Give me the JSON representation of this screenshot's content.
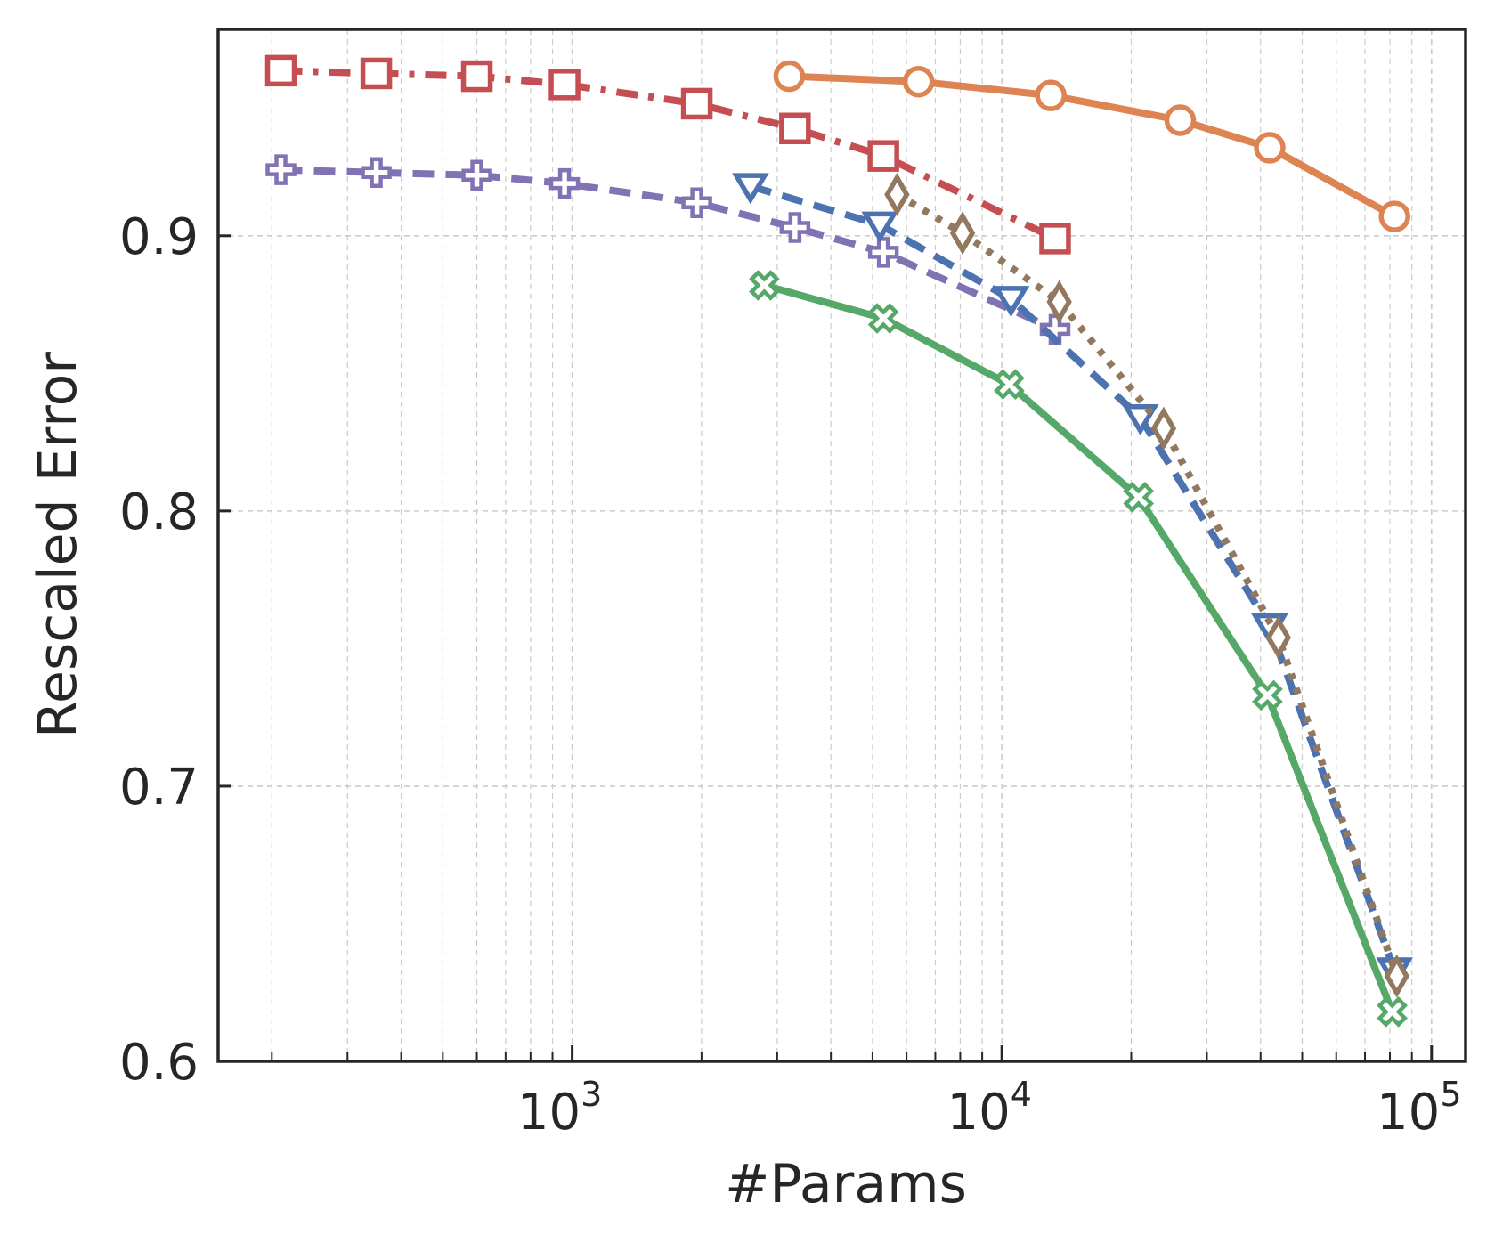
{
  "chart_data": {
    "type": "line",
    "title": "",
    "xlabel": "#Params",
    "ylabel": "Rescaled Error",
    "xscale": "log",
    "xlim": [
      150,
      120000
    ],
    "ylim": [
      0.6,
      0.975
    ],
    "grid": true,
    "legend": "none",
    "x_ticks": [
      {
        "value": 1000,
        "base": "10",
        "exp": "3"
      },
      {
        "value": 10000,
        "base": "10",
        "exp": "4"
      },
      {
        "value": 100000,
        "base": "10",
        "exp": "5"
      }
    ],
    "y_ticks": [
      {
        "value": 0.6,
        "label": "0.6"
      },
      {
        "value": 0.7,
        "label": "0.7"
      },
      {
        "value": 0.8,
        "label": "0.8"
      },
      {
        "value": 0.9,
        "label": "0.9"
      }
    ],
    "series": [
      {
        "name": "orange-circle",
        "color": "#dd8452",
        "marker": "circle",
        "dash": "solid",
        "x": [
          3200,
          6400,
          13000,
          26000,
          42000,
          82000
        ],
        "y": [
          0.958,
          0.956,
          0.951,
          0.942,
          0.932,
          0.907
        ]
      },
      {
        "name": "red-square",
        "color": "#c44e52",
        "marker": "square",
        "dash": "dashdot",
        "x": [
          210,
          350,
          600,
          960,
          1950,
          3300,
          5300,
          13300
        ],
        "y": [
          0.96,
          0.959,
          0.958,
          0.955,
          0.948,
          0.939,
          0.929,
          0.899
        ]
      },
      {
        "name": "purple-plus",
        "color": "#8172b3",
        "marker": "plus",
        "dash": "dashed",
        "x": [
          210,
          350,
          600,
          960,
          1950,
          3300,
          5300,
          13300
        ],
        "y": [
          0.924,
          0.923,
          0.922,
          0.919,
          0.912,
          0.903,
          0.894,
          0.866
        ]
      },
      {
        "name": "blue-triangle",
        "color": "#4c72b0",
        "marker": "triangle-down",
        "dash": "dashed",
        "x": [
          2600,
          5200,
          10500,
          21000,
          42000,
          82000
        ],
        "y": [
          0.918,
          0.904,
          0.877,
          0.834,
          0.758,
          0.633
        ]
      },
      {
        "name": "brown-diamond",
        "color": "#937860",
        "marker": "diamond",
        "dash": "dotted",
        "x": [
          5700,
          8100,
          13600,
          23800,
          44000,
          83000
        ],
        "y": [
          0.915,
          0.901,
          0.876,
          0.83,
          0.754,
          0.631
        ]
      },
      {
        "name": "green-x",
        "color": "#55a868",
        "marker": "x",
        "dash": "solid",
        "x": [
          2800,
          5300,
          10400,
          20800,
          41500,
          81000
        ],
        "y": [
          0.882,
          0.87,
          0.846,
          0.805,
          0.733,
          0.618
        ]
      }
    ]
  }
}
